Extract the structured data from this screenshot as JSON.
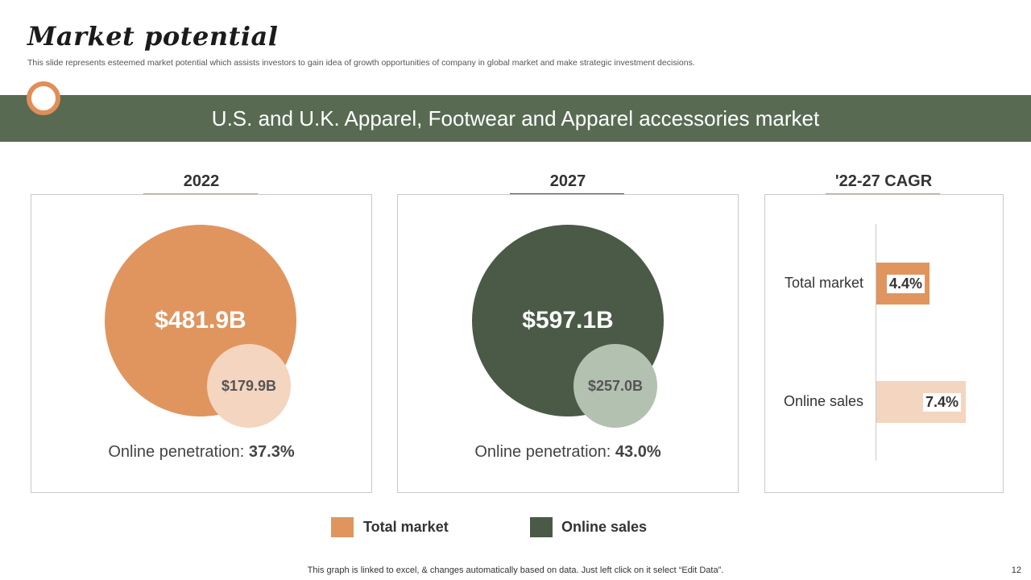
{
  "slide": {
    "title": "Market potential",
    "subtitle": "This slide represents esteemed market potential which assists investors to gain idea of growth opportunities of company in global market and make strategic investment decisions.",
    "banner": "U.S. and U.K. Apparel, Footwear and Apparel accessories market",
    "footnote": "This graph is linked to excel, & changes automatically based on data. Just left click on it select “Edit Data”.",
    "page_number": "12"
  },
  "colors": {
    "total": "#e0955f",
    "total_light": "#f3d5c0",
    "online": "#4a5a47",
    "online_light": "#b3c1b0",
    "banner": "#586b52"
  },
  "chart_data": [
    {
      "type": "bubble",
      "title": "2022",
      "series": [
        {
          "name": "Total market",
          "value": 481.9,
          "label": "$481.9B"
        },
        {
          "name": "Online sales",
          "value": 179.9,
          "label": "$179.9B"
        }
      ],
      "penetration_label": "Online penetration:",
      "penetration": "37.3%"
    },
    {
      "type": "bubble",
      "title": "2027",
      "series": [
        {
          "name": "Total market",
          "value": 597.1,
          "label": "$597.1B"
        },
        {
          "name": "Online sales",
          "value": 257.0,
          "label": "$257.0B"
        }
      ],
      "penetration_label": "Online penetration:",
      "penetration": "43.0%"
    },
    {
      "type": "bar",
      "title": "'22-27 CAGR",
      "categories": [
        "Total market",
        "Online sales"
      ],
      "values": [
        4.4,
        7.4
      ],
      "labels": [
        "4.4%",
        "7.4%"
      ]
    }
  ],
  "legend": [
    {
      "label": "Total market"
    },
    {
      "label": "Online sales"
    }
  ]
}
